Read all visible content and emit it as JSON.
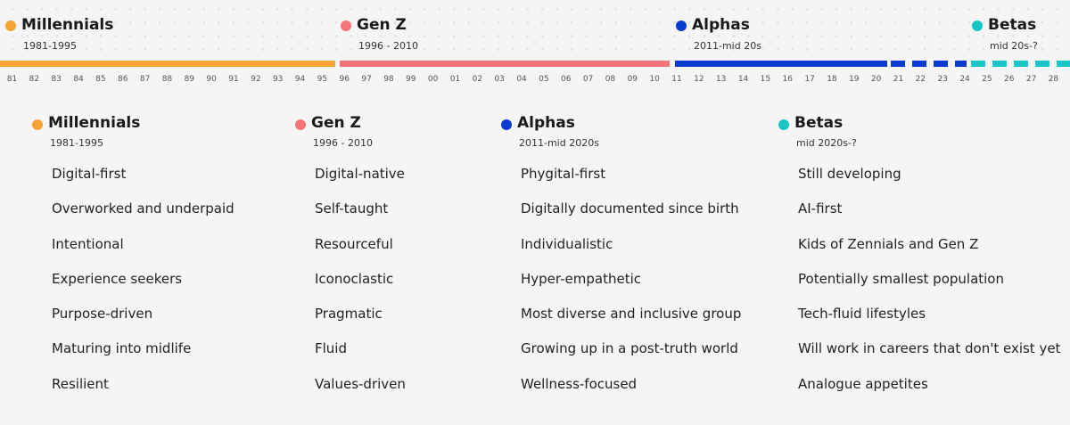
{
  "colors": {
    "millennials": "#f5a332",
    "genz": "#f47478",
    "alphas": "#0a3bd0",
    "betas": "#16c5c8"
  },
  "timeline": {
    "headers": [
      {
        "name": "Millennials",
        "range": "1981-1995",
        "color": "#f5a332"
      },
      {
        "name": "Gen Z",
        "range": "1996 - 2010",
        "color": "#f47478"
      },
      {
        "name": "Alphas",
        "range": "2011-mid 20s",
        "color": "#0a3bd0"
      },
      {
        "name": "Betas",
        "range": "mid 20s-?",
        "color": "#16c5c8"
      }
    ],
    "ticks": [
      "81",
      "82",
      "83",
      "84",
      "85",
      "86",
      "87",
      "88",
      "89",
      "90",
      "91",
      "92",
      "93",
      "94",
      "95",
      "96",
      "97",
      "98",
      "99",
      "00",
      "01",
      "02",
      "03",
      "04",
      "05",
      "06",
      "07",
      "08",
      "09",
      "10",
      "11",
      "12",
      "13",
      "14",
      "15",
      "16",
      "17",
      "18",
      "19",
      "20",
      "21",
      "22",
      "23",
      "24",
      "25",
      "26",
      "27",
      "28"
    ]
  },
  "columns": [
    {
      "name": "Millennials",
      "range": "1981-1995",
      "color": "#f5a332",
      "traits": [
        "Digital-first",
        "Overworked and underpaid",
        "Intentional",
        "Experience seekers",
        "Purpose-driven",
        "Maturing into midlife",
        "Resilient"
      ]
    },
    {
      "name": "Gen Z",
      "range": "1996 - 2010",
      "color": "#f47478",
      "traits": [
        "Digital-native",
        "Self-taught",
        "Resourceful",
        "Iconoclastic",
        "Pragmatic",
        "Fluid",
        "Values-driven"
      ]
    },
    {
      "name": "Alphas",
      "range": "2011-mid 2020s",
      "color": "#0a3bd0",
      "traits": [
        "Phygital-first",
        "Digitally documented since birth",
        "Individualistic",
        "Hyper-empathetic",
        "Most diverse and inclusive group",
        "Growing up in a post-truth world",
        "Wellness-focused"
      ]
    },
    {
      "name": "Betas",
      "range": "mid 2020s-?",
      "color": "#16c5c8",
      "traits": [
        "Still developing",
        "AI-first",
        "Kids of Zennials and Gen Z",
        "Potentially smallest population",
        "Tech-fluid lifestyles",
        "Will work in careers that don't exist yet",
        "Analogue appetites"
      ]
    }
  ]
}
